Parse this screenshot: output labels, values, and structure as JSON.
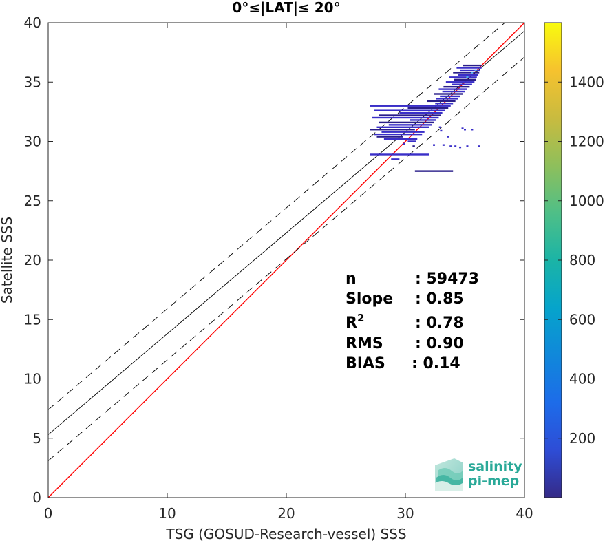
{
  "chart_data": {
    "type": "heatmap",
    "title": "0°≤|LAT|≤ 20°",
    "xlabel": "TSG (GOSUD-Research-vessel) SSS",
    "ylabel": "Satellite SSS",
    "xlim": [
      0,
      40
    ],
    "ylim": [
      0,
      40
    ],
    "xticks": [
      0,
      10,
      20,
      30,
      40
    ],
    "yticks": [
      0,
      5,
      10,
      15,
      20,
      25,
      30,
      35,
      40
    ],
    "grid": false,
    "colorbar": {
      "ticks": [
        200,
        400,
        600,
        800,
        1000,
        1200,
        1400
      ],
      "range": [
        0,
        1600
      ],
      "colormap": "parula"
    },
    "lines": [
      {
        "name": "identity",
        "slope": 1.0,
        "intercept": 0.0,
        "color": "#ff0000",
        "style": "solid"
      },
      {
        "name": "regression",
        "slope": 0.85,
        "intercept": 5.3,
        "color": "#000000",
        "style": "solid"
      },
      {
        "name": "upper",
        "slope": 0.85,
        "intercept": 7.4,
        "color": "#000000",
        "style": "dashed"
      },
      {
        "name": "lower",
        "slope": 0.85,
        "intercept": 3.1,
        "color": "#000000",
        "style": "dashed"
      }
    ],
    "stats": [
      {
        "label": "n",
        "value": ": 59473"
      },
      {
        "label": "Slope",
        "value": ": 0.85"
      },
      {
        "label": "R",
        "sup": "2",
        "value": ": 0.78"
      },
      {
        "label": "RMS",
        "value": ": 0.90"
      },
      {
        "label": "BIAS",
        "value": ": 0.14"
      }
    ],
    "density_segments": [
      {
        "y": 36.4,
        "x0": 34.8,
        "x1": 36.4
      },
      {
        "y": 36.2,
        "x0": 34.3,
        "x1": 36.4
      },
      {
        "y": 36.0,
        "x0": 34.6,
        "x1": 36.3
      },
      {
        "y": 35.8,
        "x0": 34.0,
        "x1": 36.2
      },
      {
        "y": 35.6,
        "x0": 34.4,
        "x1": 36.1
      },
      {
        "y": 35.4,
        "x0": 33.7,
        "x1": 36.0
      },
      {
        "y": 35.2,
        "x0": 34.1,
        "x1": 35.9
      },
      {
        "y": 35.0,
        "x0": 33.4,
        "x1": 35.8
      },
      {
        "y": 34.8,
        "x0": 33.9,
        "x1": 35.6
      },
      {
        "y": 34.6,
        "x0": 33.2,
        "x1": 35.4
      },
      {
        "y": 34.4,
        "x0": 32.8,
        "x1": 35.2
      },
      {
        "y": 34.2,
        "x0": 33.1,
        "x1": 35.0
      },
      {
        "y": 34.0,
        "x0": 32.4,
        "x1": 34.8
      },
      {
        "y": 33.8,
        "x0": 32.9,
        "x1": 34.6
      },
      {
        "y": 33.6,
        "x0": 32.6,
        "x1": 34.4
      },
      {
        "y": 33.4,
        "x0": 31.8,
        "x1": 34.2
      },
      {
        "y": 33.2,
        "x0": 32.5,
        "x1": 34.0
      },
      {
        "y": 33.0,
        "x0": 27.0,
        "x1": 33.8
      },
      {
        "y": 32.8,
        "x0": 30.2,
        "x1": 33.6
      },
      {
        "y": 32.6,
        "x0": 27.4,
        "x1": 33.3
      },
      {
        "y": 32.4,
        "x0": 29.5,
        "x1": 33.1
      },
      {
        "y": 32.2,
        "x0": 27.8,
        "x1": 33.0
      },
      {
        "y": 32.0,
        "x0": 27.2,
        "x1": 32.8
      },
      {
        "y": 31.8,
        "x0": 30.4,
        "x1": 32.6
      },
      {
        "y": 31.6,
        "x0": 27.8,
        "x1": 32.4
      },
      {
        "y": 31.4,
        "x0": 28.6,
        "x1": 32.2
      },
      {
        "y": 31.2,
        "x0": 27.6,
        "x1": 32.0
      },
      {
        "y": 31.0,
        "x0": 27.0,
        "x1": 30.8
      },
      {
        "y": 30.8,
        "x0": 28.0,
        "x1": 31.6
      },
      {
        "y": 30.6,
        "x0": 27.4,
        "x1": 31.4
      },
      {
        "y": 30.4,
        "x0": 27.6,
        "x1": 29.8
      },
      {
        "y": 30.2,
        "x0": 28.2,
        "x1": 31.0
      },
      {
        "y": 30.0,
        "x0": 30.2,
        "x1": 30.9
      },
      {
        "y": 29.6,
        "x0": 30.6,
        "x1": 30.8
      },
      {
        "y": 28.9,
        "x0": 27.0,
        "x1": 32.0
      },
      {
        "y": 28.5,
        "x0": 28.8,
        "x1": 29.5
      },
      {
        "y": 27.5,
        "x0": 30.8,
        "x1": 34.0
      }
    ],
    "density_points": [
      {
        "x": 32.9,
        "y": 31.2
      },
      {
        "x": 33.0,
        "y": 30.9
      },
      {
        "x": 33.6,
        "y": 30.4
      },
      {
        "x": 34.8,
        "y": 31.1
      },
      {
        "x": 35.0,
        "y": 31.0
      },
      {
        "x": 35.6,
        "y": 31.0
      },
      {
        "x": 33.2,
        "y": 29.7
      },
      {
        "x": 33.8,
        "y": 29.6
      },
      {
        "x": 34.2,
        "y": 29.6
      },
      {
        "x": 34.6,
        "y": 29.5
      },
      {
        "x": 35.2,
        "y": 29.6
      },
      {
        "x": 36.2,
        "y": 29.6
      },
      {
        "x": 29.6,
        "y": 30.2
      },
      {
        "x": 29.9,
        "y": 29.8
      },
      {
        "x": 32.4,
        "y": 29.7
      }
    ],
    "hot_points": [
      {
        "x": 35.6,
        "y": 35.8
      },
      {
        "x": 35.9,
        "y": 36.0
      },
      {
        "x": 35.2,
        "y": 35.4
      }
    ]
  },
  "logo": {
    "line1": "salinity",
    "line2": "pi-mep"
  },
  "colors": {
    "identity": "#ff0000",
    "regression": "#000000",
    "density": "#3a2fc8",
    "density_dark": "#2a1e8a",
    "density_hot": "#4ab0f0",
    "logo": "#2aa998",
    "axis": "#262626"
  }
}
